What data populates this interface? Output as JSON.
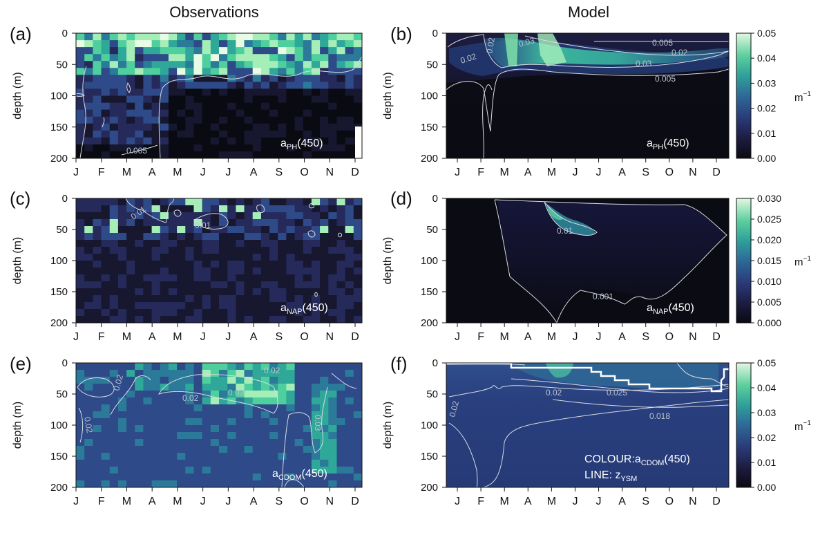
{
  "headers": {
    "left": "Observations",
    "right": "Model"
  },
  "months": [
    "J",
    "F",
    "M",
    "A",
    "M",
    "J",
    "J",
    "A",
    "S",
    "O",
    "N",
    "D"
  ],
  "depth_axis": {
    "label": "depth (m)",
    "ticks": [
      0,
      50,
      100,
      150,
      200
    ]
  },
  "unit": {
    "base": "m",
    "exp": "−1"
  },
  "colors": {
    "scale": [
      "#0a0a12",
      "#17172f",
      "#262a5a",
      "#2e4a88",
      "#2b7a9a",
      "#2fa89a",
      "#4fcf9e",
      "#a6eeb8",
      "#e8fbe4"
    ],
    "contour": "#d9dde3",
    "zysm_line": "#ffffff"
  },
  "chart_data": [
    {
      "panel": "(a)",
      "type": "heatmap",
      "column": "Observations",
      "variable": "a",
      "variable_sub": "PH",
      "variable_suffix": "(450)",
      "x": [
        "J",
        "F",
        "M",
        "A",
        "M",
        "J",
        "J",
        "A",
        "S",
        "O",
        "N",
        "D"
      ],
      "y_range": [
        0,
        200
      ],
      "ylabel": "depth (m)",
      "contour_labels": [
        "0.005"
      ]
    },
    {
      "panel": "(b)",
      "type": "heatmap",
      "column": "Model",
      "variable": "a",
      "variable_sub": "PH",
      "variable_suffix": "(450)",
      "x": [
        "J",
        "F",
        "M",
        "A",
        "M",
        "J",
        "J",
        "A",
        "S",
        "O",
        "N",
        "D"
      ],
      "y_range": [
        0,
        200
      ],
      "ylabel": "depth (m)",
      "contour_labels": [
        "0.02",
        "0.02",
        "0.03",
        "0.005",
        "0.02",
        "0.03",
        "0.005"
      ],
      "colorbar": {
        "range": [
          0,
          0.05
        ],
        "ticks": [
          "0.05",
          "0.04",
          "0.03",
          "0.02",
          "0.01",
          "0.00"
        ]
      }
    },
    {
      "panel": "(c)",
      "type": "heatmap",
      "column": "Observations",
      "variable": "a",
      "variable_sub": "NAP",
      "variable_suffix": "(450)",
      "x": [
        "J",
        "F",
        "M",
        "A",
        "M",
        "J",
        "J",
        "A",
        "S",
        "O",
        "N",
        "D"
      ],
      "y_range": [
        0,
        200
      ],
      "ylabel": "depth (m)",
      "contour_labels": [
        "0.01",
        "0.01"
      ]
    },
    {
      "panel": "(d)",
      "type": "heatmap",
      "column": "Model",
      "variable": "a",
      "variable_sub": "NAP",
      "variable_suffix": "(450)",
      "x": [
        "J",
        "F",
        "M",
        "A",
        "M",
        "J",
        "J",
        "A",
        "S",
        "O",
        "N",
        "D"
      ],
      "y_range": [
        0,
        200
      ],
      "ylabel": "depth (m)",
      "contour_labels": [
        "0.01",
        "0.001"
      ],
      "colorbar": {
        "range": [
          0,
          0.03
        ],
        "ticks": [
          "0.030",
          "0.025",
          "0.020",
          "0.015",
          "0.010",
          "0.005",
          "0.000"
        ]
      }
    },
    {
      "panel": "(e)",
      "type": "heatmap",
      "column": "Observations",
      "variable": "a",
      "variable_sub": "CDOM",
      "variable_suffix": "(450)",
      "x": [
        "J",
        "F",
        "M",
        "A",
        "M",
        "J",
        "J",
        "A",
        "S",
        "O",
        "N",
        "D"
      ],
      "y_range": [
        0,
        200
      ],
      "ylabel": "depth (m)",
      "contour_labels": [
        "0.02",
        "0.02",
        "0.02",
        "0.02",
        "0.03",
        "0.03"
      ]
    },
    {
      "panel": "(f)",
      "type": "heatmap",
      "column": "Model",
      "variable": "a",
      "variable_sub": "CDOM",
      "variable_suffix": "(450)",
      "prefix": "COLOUR:",
      "line_label": "LINE: z",
      "line_sub": "YSM",
      "x": [
        "J",
        "F",
        "M",
        "A",
        "M",
        "J",
        "J",
        "A",
        "S",
        "O",
        "N",
        "D"
      ],
      "y_range": [
        0,
        200
      ],
      "ylabel": "depth (m)",
      "contour_labels": [
        "0.02",
        "0.02",
        "0.025",
        "0.018"
      ],
      "colorbar": {
        "range": [
          0,
          0.05
        ],
        "ticks": [
          "0.05",
          "0.04",
          "0.03",
          "0.02",
          "0.01",
          "0.00"
        ]
      }
    }
  ]
}
